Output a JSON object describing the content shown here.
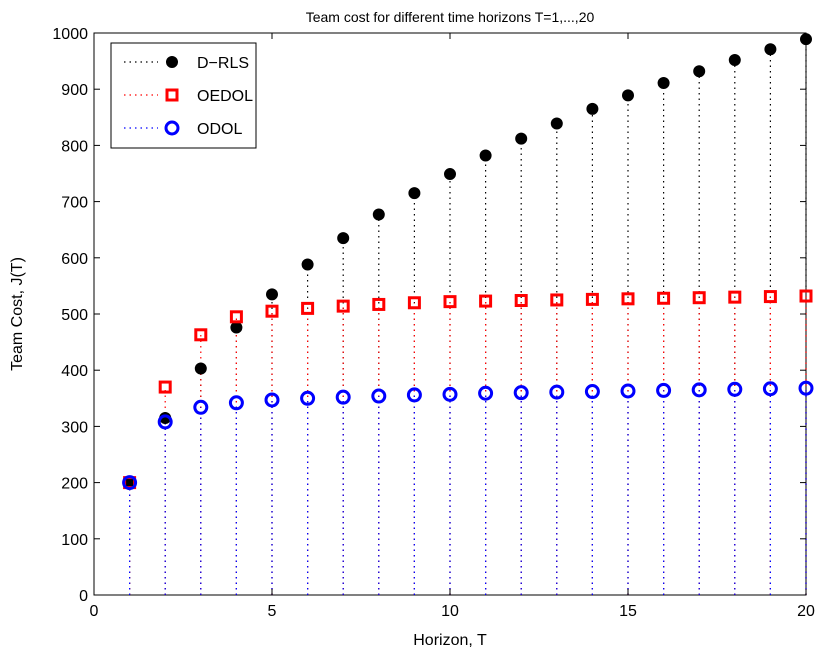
{
  "chart_data": {
    "type": "scatter",
    "style": "stem-dotted-markers",
    "title": "Team cost for different time horizons T=1,...,20",
    "xlabel": "Horizon, T",
    "ylabel": "Team Cost, J(T)",
    "xlim": [
      0,
      20
    ],
    "ylim": [
      0,
      1000
    ],
    "xticks": [
      0,
      5,
      10,
      15,
      20
    ],
    "yticks": [
      0,
      100,
      200,
      300,
      400,
      500,
      600,
      700,
      800,
      900,
      1000
    ],
    "grid": false,
    "legend_position": "top-left",
    "x": [
      1,
      2,
      3,
      4,
      5,
      6,
      7,
      8,
      9,
      10,
      11,
      12,
      13,
      14,
      15,
      16,
      17,
      18,
      19,
      20
    ],
    "series": [
      {
        "name": "D−RLS",
        "color": "#000000",
        "marker": "filled-circle",
        "values": [
          200,
          315,
          403,
          476,
          535,
          588,
          635,
          677,
          715,
          749,
          782,
          812,
          839,
          865,
          889,
          911,
          932,
          952,
          971,
          989
        ]
      },
      {
        "name": "OEDOL",
        "color": "#ff0000",
        "marker": "square",
        "values": [
          200,
          370,
          463,
          495,
          505,
          510,
          514,
          517,
          520,
          522,
          523,
          524,
          525,
          526,
          527,
          528,
          529,
          530,
          531,
          532
        ]
      },
      {
        "name": "ODOL",
        "color": "#0000ff",
        "marker": "circle",
        "values": [
          200,
          308,
          334,
          342,
          347,
          350,
          352,
          354,
          356,
          357,
          359,
          360,
          361,
          362,
          363,
          364,
          365,
          366,
          367,
          368
        ]
      }
    ]
  }
}
